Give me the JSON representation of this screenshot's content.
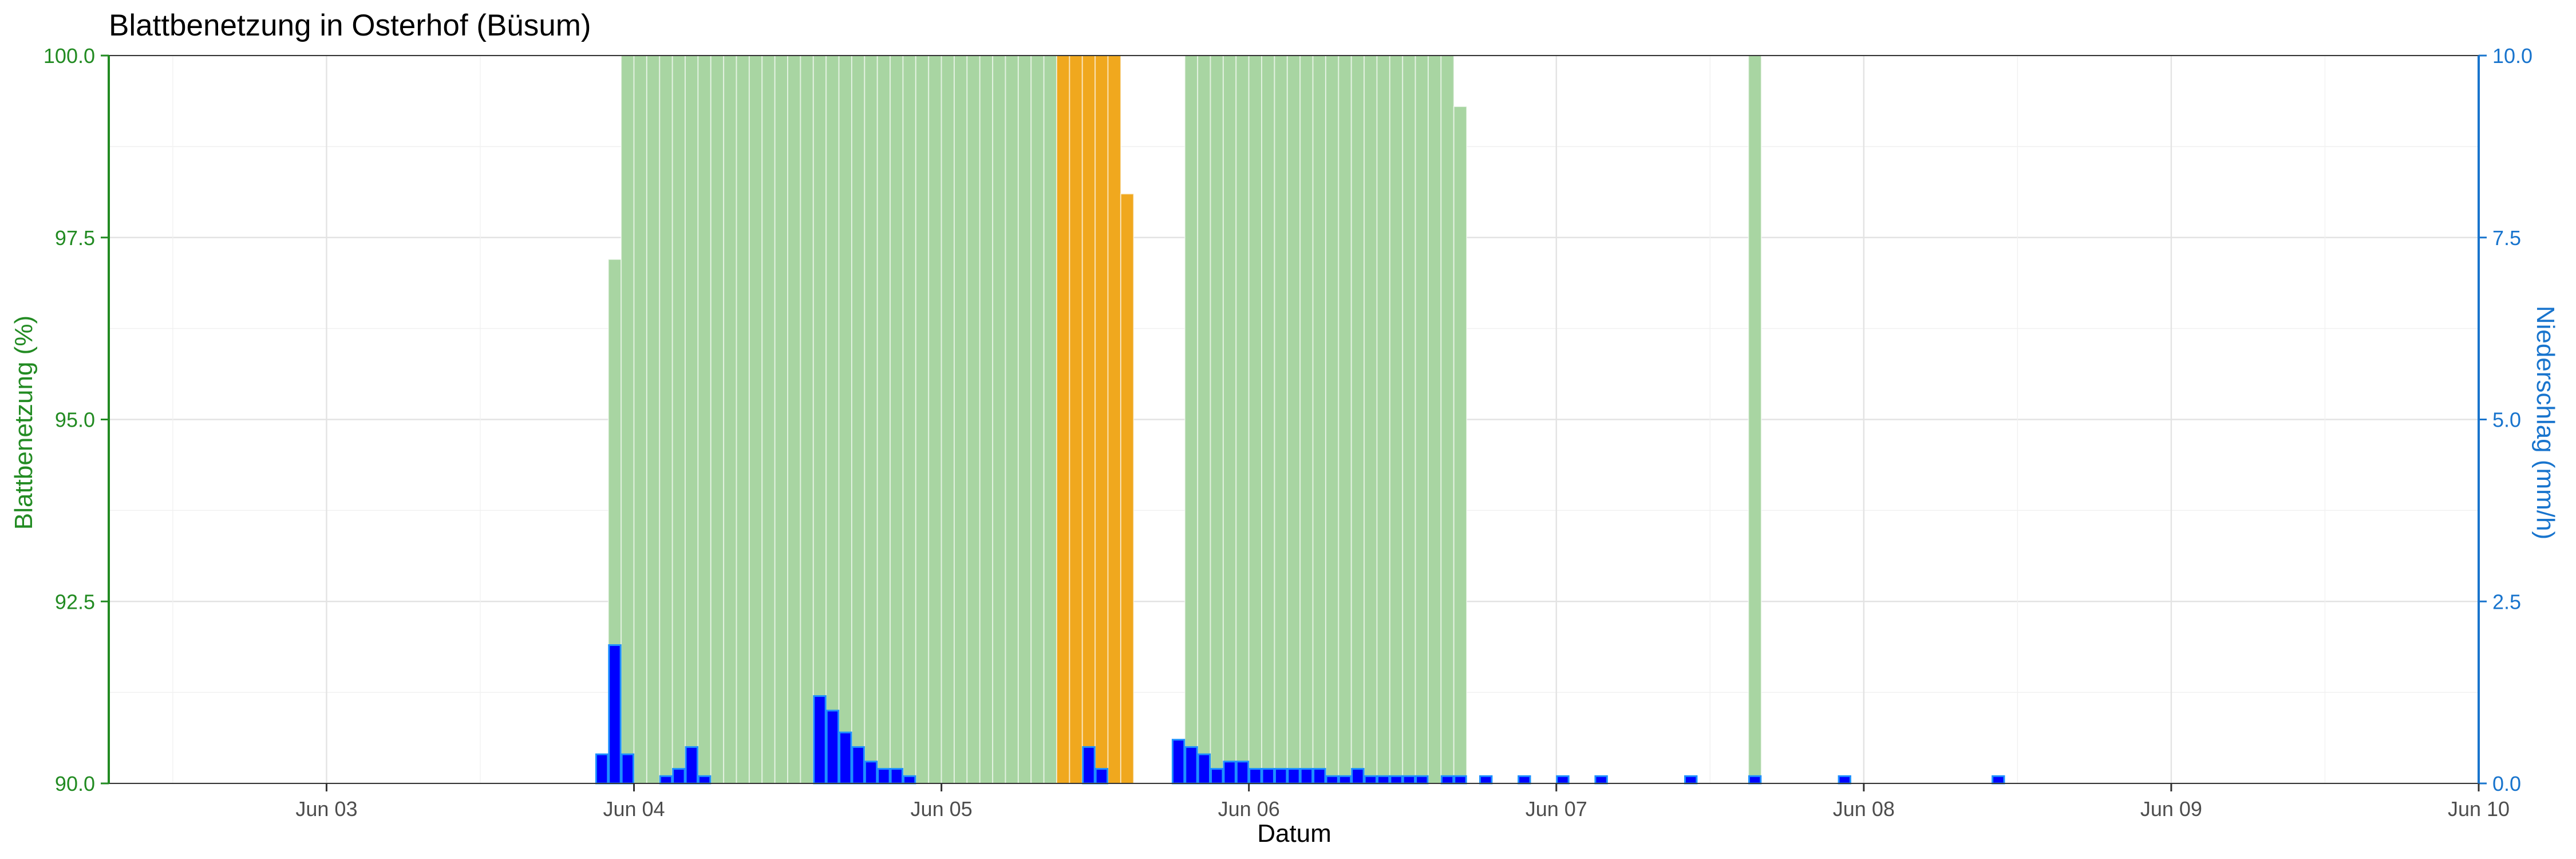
{
  "chart_data": {
    "type": "bar",
    "title": "Blattbenetzung in Osterhof (Büsum)",
    "xlabel": "Datum",
    "ylabel": "Blattbenetzung (%)",
    "ylabel_right": "Niederschlag (mm/h)",
    "x_start": "2022-06-02 07:00",
    "x_end": "2022-06-10 00:00",
    "bar_width_hours": 1,
    "x_ticks": [
      {
        "datetime": "2022-06-03 00:00",
        "label": "Jun 03"
      },
      {
        "datetime": "2022-06-04 00:00",
        "label": "Jun 04"
      },
      {
        "datetime": "2022-06-05 00:00",
        "label": "Jun 05"
      },
      {
        "datetime": "2022-06-06 00:00",
        "label": "Jun 06"
      },
      {
        "datetime": "2022-06-07 00:00",
        "label": "Jun 07"
      },
      {
        "datetime": "2022-06-08 00:00",
        "label": "Jun 08"
      },
      {
        "datetime": "2022-06-09 00:00",
        "label": "Jun 09"
      },
      {
        "datetime": "2022-06-10 00:00",
        "label": "Jun 10"
      }
    ],
    "ylim": [
      90,
      100
    ],
    "y_ticks": [
      {
        "value": 90,
        "label": "90.0"
      },
      {
        "value": 92.5,
        "label": "92.5"
      },
      {
        "value": 95,
        "label": "95.0"
      },
      {
        "value": 97.5,
        "label": "97.5"
      },
      {
        "value": 100,
        "label": "100.0"
      }
    ],
    "ylim_right": [
      0,
      10
    ],
    "y_ticks_right": [
      {
        "value": 0,
        "label": "0.0"
      },
      {
        "value": 2.5,
        "label": "2.5"
      },
      {
        "value": 5,
        "label": "5.0"
      },
      {
        "value": 7.5,
        "label": "7.5"
      },
      {
        "value": 10,
        "label": "10.0"
      }
    ],
    "grid": true,
    "series": [
      {
        "axis": "left",
        "color": "#A8D5A2",
        "points": [
          [
            "2022-06-03 22:00",
            97.2
          ],
          [
            "2022-06-03 23:00",
            100
          ],
          [
            "2022-06-04 00:00",
            100
          ],
          [
            "2022-06-04 01:00",
            100
          ],
          [
            "2022-06-04 02:00",
            100
          ],
          [
            "2022-06-04 03:00",
            100
          ],
          [
            "2022-06-04 04:00",
            100
          ],
          [
            "2022-06-04 05:00",
            100
          ],
          [
            "2022-06-04 06:00",
            100
          ],
          [
            "2022-06-04 07:00",
            100
          ],
          [
            "2022-06-04 08:00",
            100
          ],
          [
            "2022-06-04 09:00",
            100
          ],
          [
            "2022-06-04 10:00",
            100
          ],
          [
            "2022-06-04 11:00",
            100
          ],
          [
            "2022-06-04 12:00",
            100
          ],
          [
            "2022-06-04 13:00",
            100
          ],
          [
            "2022-06-04 14:00",
            100
          ],
          [
            "2022-06-04 15:00",
            100
          ],
          [
            "2022-06-04 16:00",
            100
          ],
          [
            "2022-06-04 17:00",
            100
          ],
          [
            "2022-06-04 18:00",
            100
          ],
          [
            "2022-06-04 19:00",
            100
          ],
          [
            "2022-06-04 20:00",
            100
          ],
          [
            "2022-06-04 21:00",
            100
          ],
          [
            "2022-06-04 22:00",
            100
          ],
          [
            "2022-06-04 23:00",
            100
          ],
          [
            "2022-06-05 00:00",
            100
          ],
          [
            "2022-06-05 01:00",
            100
          ],
          [
            "2022-06-05 02:00",
            100
          ],
          [
            "2022-06-05 03:00",
            100
          ],
          [
            "2022-06-05 04:00",
            100
          ],
          [
            "2022-06-05 05:00",
            100
          ],
          [
            "2022-06-05 06:00",
            100
          ],
          [
            "2022-06-05 07:00",
            100
          ],
          [
            "2022-06-05 08:00",
            100
          ],
          [
            "2022-06-05 19:00",
            100
          ],
          [
            "2022-06-05 20:00",
            100
          ],
          [
            "2022-06-05 21:00",
            100
          ],
          [
            "2022-06-05 22:00",
            100
          ],
          [
            "2022-06-05 23:00",
            100
          ],
          [
            "2022-06-06 00:00",
            100
          ],
          [
            "2022-06-06 01:00",
            100
          ],
          [
            "2022-06-06 02:00",
            100
          ],
          [
            "2022-06-06 03:00",
            100
          ],
          [
            "2022-06-06 04:00",
            100
          ],
          [
            "2022-06-06 05:00",
            100
          ],
          [
            "2022-06-06 06:00",
            100
          ],
          [
            "2022-06-06 07:00",
            100
          ],
          [
            "2022-06-06 08:00",
            100
          ],
          [
            "2022-06-06 09:00",
            100
          ],
          [
            "2022-06-06 10:00",
            100
          ],
          [
            "2022-06-06 11:00",
            100
          ],
          [
            "2022-06-06 12:00",
            100
          ],
          [
            "2022-06-06 13:00",
            100
          ],
          [
            "2022-06-06 14:00",
            100
          ],
          [
            "2022-06-06 15:00",
            100
          ],
          [
            "2022-06-06 16:00",
            99.3
          ],
          [
            "2022-06-07 15:00",
            100
          ]
        ]
      },
      {
        "axis": "left",
        "color": "#F0A81E",
        "points": [
          [
            "2022-06-05 09:00",
            100
          ],
          [
            "2022-06-05 10:00",
            100
          ],
          [
            "2022-06-05 11:00",
            100
          ],
          [
            "2022-06-05 12:00",
            100
          ],
          [
            "2022-06-05 13:00",
            100
          ],
          [
            "2022-06-05 14:00",
            98.1
          ]
        ]
      },
      {
        "axis": "right",
        "color": "#0000FF",
        "stroke": "#1E90FF",
        "points": [
          [
            "2022-06-03 21:00",
            0.4
          ],
          [
            "2022-06-03 22:00",
            1.9
          ],
          [
            "2022-06-03 23:00",
            0.4
          ],
          [
            "2022-06-04 02:00",
            0.1
          ],
          [
            "2022-06-04 03:00",
            0.2
          ],
          [
            "2022-06-04 04:00",
            0.5
          ],
          [
            "2022-06-04 05:00",
            0.1
          ],
          [
            "2022-06-04 14:00",
            1.2
          ],
          [
            "2022-06-04 15:00",
            1.0
          ],
          [
            "2022-06-04 16:00",
            0.7
          ],
          [
            "2022-06-04 17:00",
            0.5
          ],
          [
            "2022-06-04 18:00",
            0.3
          ],
          [
            "2022-06-04 19:00",
            0.2
          ],
          [
            "2022-06-04 20:00",
            0.2
          ],
          [
            "2022-06-04 21:00",
            0.1
          ],
          [
            "2022-06-05 11:00",
            0.5
          ],
          [
            "2022-06-05 12:00",
            0.2
          ],
          [
            "2022-06-05 18:00",
            0.6
          ],
          [
            "2022-06-05 19:00",
            0.5
          ],
          [
            "2022-06-05 20:00",
            0.4
          ],
          [
            "2022-06-05 21:00",
            0.2
          ],
          [
            "2022-06-05 22:00",
            0.3
          ],
          [
            "2022-06-05 23:00",
            0.3
          ],
          [
            "2022-06-06 00:00",
            0.2
          ],
          [
            "2022-06-06 01:00",
            0.2
          ],
          [
            "2022-06-06 02:00",
            0.2
          ],
          [
            "2022-06-06 03:00",
            0.2
          ],
          [
            "2022-06-06 04:00",
            0.2
          ],
          [
            "2022-06-06 05:00",
            0.2
          ],
          [
            "2022-06-06 06:00",
            0.1
          ],
          [
            "2022-06-06 07:00",
            0.1
          ],
          [
            "2022-06-06 08:00",
            0.2
          ],
          [
            "2022-06-06 09:00",
            0.1
          ],
          [
            "2022-06-06 10:00",
            0.1
          ],
          [
            "2022-06-06 11:00",
            0.1
          ],
          [
            "2022-06-06 12:00",
            0.1
          ],
          [
            "2022-06-06 13:00",
            0.1
          ],
          [
            "2022-06-06 15:00",
            0.1
          ],
          [
            "2022-06-06 16:00",
            0.1
          ],
          [
            "2022-06-06 18:00",
            0.1
          ],
          [
            "2022-06-06 21:00",
            0.1
          ],
          [
            "2022-06-07 00:00",
            0.1
          ],
          [
            "2022-06-07 03:00",
            0.1
          ],
          [
            "2022-06-07 10:00",
            0.1
          ],
          [
            "2022-06-07 15:00",
            0.1
          ],
          [
            "2022-06-07 22:00",
            0.1
          ],
          [
            "2022-06-08 10:00",
            0.1
          ]
        ]
      }
    ]
  }
}
